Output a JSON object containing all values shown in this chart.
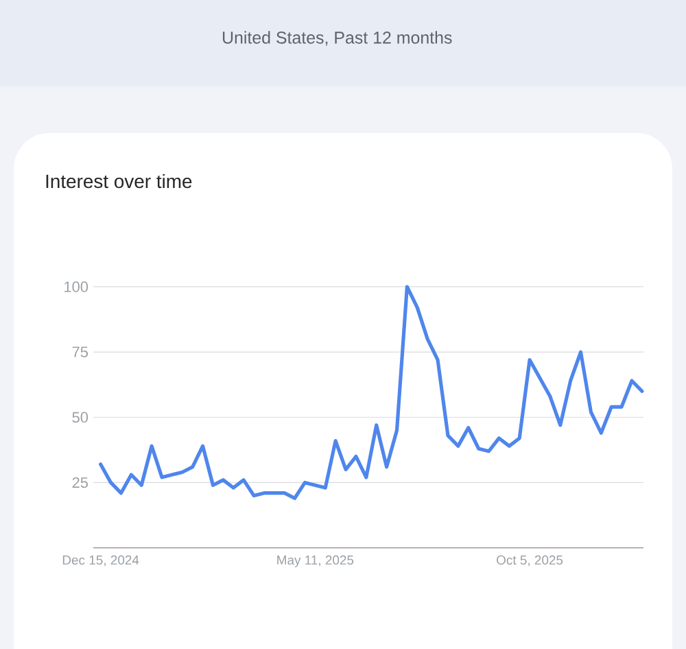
{
  "chart_data": {
    "type": "line",
    "title": "Interest over time",
    "subtitle": "United States, Past 12 months",
    "x": [
      "2024-12-15",
      "2024-12-22",
      "2024-12-29",
      "2025-01-05",
      "2025-01-12",
      "2025-01-19",
      "2025-01-26",
      "2025-02-02",
      "2025-02-09",
      "2025-02-16",
      "2025-02-23",
      "2025-03-02",
      "2025-03-09",
      "2025-03-16",
      "2025-03-23",
      "2025-03-30",
      "2025-04-06",
      "2025-04-13",
      "2025-04-20",
      "2025-04-27",
      "2025-05-04",
      "2025-05-11",
      "2025-05-18",
      "2025-05-25",
      "2025-06-01",
      "2025-06-08",
      "2025-06-15",
      "2025-06-22",
      "2025-06-29",
      "2025-07-06",
      "2025-07-13",
      "2025-07-20",
      "2025-07-27",
      "2025-08-03",
      "2025-08-10",
      "2025-08-17",
      "2025-08-24",
      "2025-08-31",
      "2025-09-07",
      "2025-09-14",
      "2025-09-21",
      "2025-09-28",
      "2025-10-05",
      "2025-10-12",
      "2025-10-19",
      "2025-10-26",
      "2025-11-02",
      "2025-11-09",
      "2025-11-16",
      "2025-11-23",
      "2025-11-30",
      "2025-12-07",
      "2025-12-14",
      "2025-12-21"
    ],
    "series": [
      {
        "color": "#4f86ec",
        "values": [
          32,
          25,
          21,
          28,
          24,
          39,
          27,
          28,
          29,
          31,
          39,
          24,
          26,
          23,
          26,
          20,
          21,
          21,
          21,
          19,
          25,
          24,
          23,
          41,
          30,
          35,
          27,
          47,
          31,
          45,
          100,
          92,
          80,
          72,
          43,
          39,
          46,
          38,
          37,
          42,
          39,
          42,
          72,
          65,
          58,
          47,
          64,
          75,
          52,
          44,
          54,
          54,
          64,
          60
        ]
      }
    ],
    "xlim": [
      "2024-12-10",
      "2025-12-22"
    ],
    "xticks": [
      {
        "value": "2024-12-15",
        "label": "Dec 15, 2024"
      },
      {
        "value": "2025-05-11",
        "label": "May 11, 2025"
      },
      {
        "value": "2025-10-05",
        "label": "Oct 5, 2025"
      }
    ],
    "ylim": [
      0,
      100
    ],
    "yticks": [
      25,
      50,
      75,
      100
    ],
    "grid": "y"
  }
}
